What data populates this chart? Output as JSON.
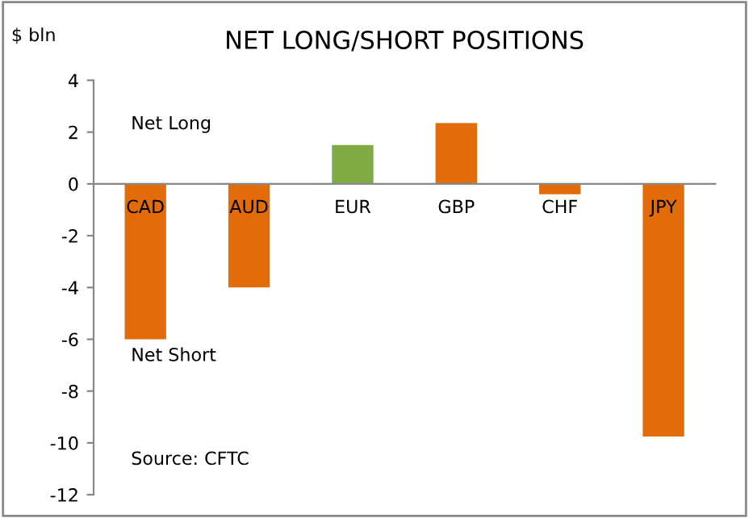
{
  "chart_data": {
    "type": "bar",
    "title": "NET LONG/SHORT POSITIONS",
    "ylabel": "$ bln",
    "categories": [
      "CAD",
      "AUD",
      "EUR",
      "GBP",
      "CHF",
      "JPY"
    ],
    "values": [
      -6.0,
      -4.0,
      1.5,
      2.35,
      -0.4,
      -9.75
    ],
    "colors": [
      "#e36c0a",
      "#e36c0a",
      "#7fab42",
      "#e36c0a",
      "#e36c0a",
      "#e36c0a"
    ],
    "ylim": [
      -12,
      4
    ],
    "yticks": [
      -12,
      -10,
      -8,
      -6,
      -4,
      -2,
      0,
      2,
      4
    ],
    "grid": false,
    "annotations": [
      "Net Long",
      "Net Short",
      "Source: CFTC"
    ]
  }
}
